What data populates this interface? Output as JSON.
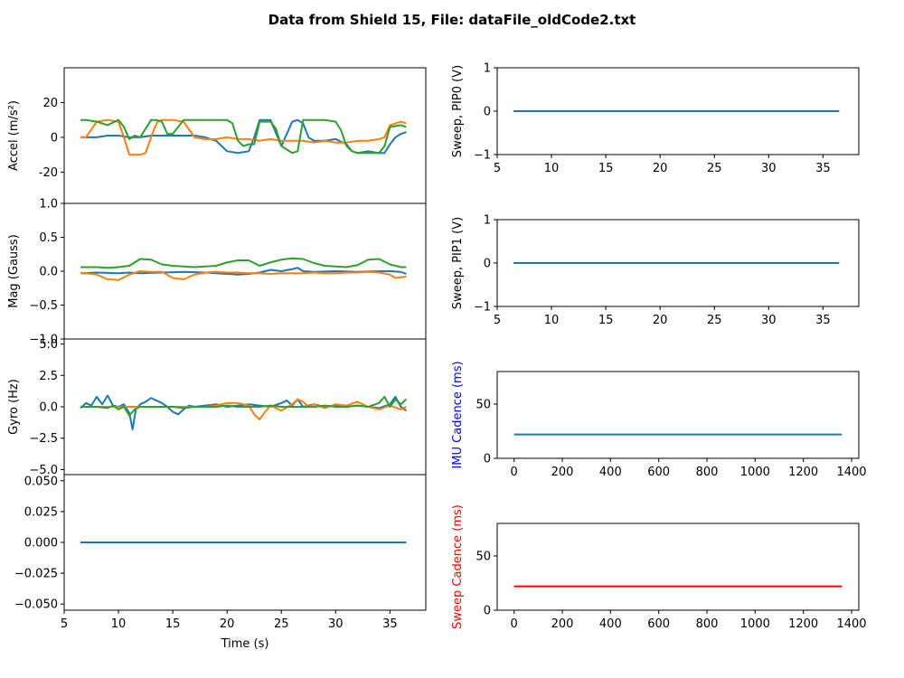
{
  "figure": {
    "title": "Data from Shield 15, File: dataFile_oldCode2.txt"
  },
  "colors": {
    "c0": "#1f77b4",
    "c1": "#ff7f0e",
    "c2": "#2ca02c",
    "red": "#ff0000",
    "blue": "#0000ff"
  },
  "chart_data": [
    {
      "id": "accel",
      "type": "line",
      "ylabel": "Accel (m/s²)",
      "ylim": [
        -38,
        40
      ],
      "yticks": [
        -20,
        0,
        20
      ],
      "xlim": [
        5,
        38.3
      ],
      "x_ticklabels_visible": false,
      "series": [
        {
          "color": "c0",
          "x": [
            6.5,
            8,
            9,
            10,
            11,
            12,
            13,
            15,
            17,
            18,
            19,
            20,
            21,
            22,
            22.5,
            23,
            24,
            25,
            26,
            26.5,
            27,
            27.5,
            28,
            29,
            30,
            31,
            31.5,
            32,
            33,
            34,
            34.5,
            35,
            35.5,
            36,
            36.5
          ],
          "y": [
            0,
            0,
            1,
            1,
            0,
            0,
            1,
            1,
            1,
            0,
            -2,
            -8,
            -9,
            -8,
            0,
            10,
            10,
            -5,
            9,
            10,
            8,
            0,
            -2,
            -2,
            -1,
            -4,
            -8,
            -9,
            -8,
            -9,
            -9,
            -4,
            0,
            2,
            3
          ]
        },
        {
          "color": "c1",
          "x": [
            6.5,
            7,
            8,
            9,
            10,
            10.5,
            11,
            11.5,
            12,
            12.5,
            13,
            13.3,
            13.6,
            14,
            15,
            16,
            17,
            18,
            19,
            20,
            21,
            22,
            23,
            24,
            25,
            26,
            27,
            28,
            29,
            30,
            31,
            32,
            33,
            34,
            34.5,
            35,
            35.5,
            36,
            36.5
          ],
          "y": [
            0,
            0,
            9,
            10,
            9,
            0,
            -10,
            -10,
            -10,
            -9,
            0,
            5,
            9,
            10,
            10,
            9,
            0,
            -1,
            -1,
            0,
            -1,
            -1,
            -2,
            -1,
            -2,
            -2,
            -2,
            -3,
            -2,
            -3,
            -3,
            -2,
            -2,
            -1,
            0,
            7,
            8,
            9,
            8
          ]
        },
        {
          "color": "c2",
          "x": [
            6.5,
            7,
            8,
            9,
            10,
            10.5,
            11,
            11.5,
            12,
            13,
            13.5,
            14,
            14.5,
            15,
            16,
            17,
            18,
            19,
            20,
            20.5,
            21,
            21.5,
            22,
            22.5,
            23,
            24,
            24.5,
            25,
            25.5,
            26,
            26.5,
            27,
            28,
            29,
            30,
            30.5,
            31,
            31.5,
            32,
            33,
            34,
            34.5,
            35,
            36,
            36.5
          ],
          "y": [
            10,
            10,
            9,
            7,
            10,
            6,
            -1,
            1,
            0,
            10,
            10,
            9,
            2,
            2,
            10,
            10,
            10,
            10,
            10,
            8,
            -2,
            -5,
            -4,
            -4,
            9,
            9,
            5,
            -5,
            -7,
            -9,
            -8,
            10,
            10,
            10,
            9,
            4,
            -5,
            -8,
            -9,
            -9,
            -9,
            -5,
            6,
            7,
            6
          ]
        }
      ]
    },
    {
      "id": "mag",
      "type": "line",
      "ylabel": "Mag (Gauss)",
      "ylim": [
        -1.0,
        1.0
      ],
      "yticks": [
        -1.0,
        -0.5,
        0.0,
        0.5,
        1.0
      ],
      "ytick_labels": [
        "−1.0",
        "−0.5",
        "0.0",
        "0.5",
        "1.0"
      ],
      "xlim": [
        5,
        38.3
      ],
      "x_ticklabels_visible": false,
      "series": [
        {
          "color": "c0",
          "x": [
            6.5,
            8,
            10,
            11,
            12,
            14,
            16,
            18,
            20,
            21,
            22,
            23,
            24,
            25,
            26,
            26.5,
            27,
            28,
            30,
            32,
            34,
            35,
            36,
            36.5
          ],
          "y": [
            -0.03,
            -0.02,
            -0.03,
            -0.02,
            -0.03,
            -0.02,
            -0.01,
            -0.02,
            -0.04,
            -0.05,
            -0.04,
            -0.02,
            0.02,
            0.0,
            0.03,
            0.05,
            0.0,
            -0.01,
            0.0,
            -0.01,
            0.0,
            0.0,
            -0.01,
            -0.04
          ]
        },
        {
          "color": "c1",
          "x": [
            6.5,
            7,
            8,
            9,
            10,
            11,
            12,
            13,
            14,
            15,
            16,
            17,
            18,
            19,
            20,
            21,
            22,
            23,
            24,
            25,
            26,
            27,
            28,
            29,
            30,
            31,
            32,
            33,
            34,
            35,
            35.5,
            36,
            36.5
          ],
          "y": [
            -0.03,
            -0.03,
            -0.05,
            -0.12,
            -0.13,
            -0.05,
            0.0,
            -0.01,
            -0.01,
            -0.1,
            -0.12,
            -0.05,
            -0.02,
            -0.01,
            -0.02,
            -0.02,
            -0.03,
            -0.03,
            -0.04,
            -0.03,
            -0.03,
            -0.03,
            -0.02,
            -0.03,
            -0.03,
            -0.02,
            -0.02,
            -0.01,
            -0.02,
            -0.05,
            -0.1,
            -0.09,
            -0.08
          ]
        },
        {
          "color": "c2",
          "x": [
            6.5,
            8,
            9,
            10,
            11,
            12,
            13,
            14,
            15,
            16,
            17,
            18,
            19,
            20,
            21,
            22,
            23,
            24,
            25,
            26,
            27,
            28,
            29,
            30,
            31,
            32,
            33,
            34,
            35,
            36,
            36.5
          ],
          "y": [
            0.06,
            0.06,
            0.05,
            0.06,
            0.08,
            0.18,
            0.17,
            0.1,
            0.08,
            0.07,
            0.06,
            0.07,
            0.08,
            0.13,
            0.16,
            0.16,
            0.08,
            0.13,
            0.17,
            0.19,
            0.18,
            0.12,
            0.08,
            0.07,
            0.06,
            0.09,
            0.17,
            0.18,
            0.1,
            0.06,
            0.06
          ]
        }
      ]
    },
    {
      "id": "gyro",
      "type": "line",
      "ylabel": "Gyro (Hz)",
      "ylim": [
        -5.4,
        5.4
      ],
      "yticks": [
        -5.0,
        -2.5,
        0.0,
        2.5,
        5.0
      ],
      "ytick_labels": [
        "−5.0",
        "−2.5",
        "0.0",
        "2.5",
        "5.0"
      ],
      "xlim": [
        5,
        38.3
      ],
      "x_ticklabels_visible": false,
      "series": [
        {
          "color": "c0",
          "x": [
            6.5,
            7,
            7.5,
            8,
            8.5,
            9,
            9.5,
            10,
            10.5,
            11,
            11.3,
            11.6,
            12,
            12.5,
            13,
            13.5,
            14,
            14.5,
            15,
            15.5,
            16,
            16.5,
            17,
            18,
            19,
            20,
            21,
            22,
            23,
            24,
            25,
            25.5,
            26,
            26.5,
            27,
            28,
            29,
            30,
            31,
            32,
            33,
            34,
            35,
            35.5,
            36,
            36.5
          ],
          "y": [
            -0.1,
            0.3,
            0.1,
            0.8,
            0.2,
            0.9,
            0.1,
            0.0,
            0.2,
            -0.5,
            -1.8,
            -0.2,
            0.2,
            0.4,
            0.7,
            0.5,
            0.3,
            0.0,
            -0.4,
            -0.6,
            -0.2,
            0.1,
            0.0,
            0.1,
            0.2,
            0.0,
            0.1,
            0.2,
            0.1,
            0.0,
            0.3,
            0.5,
            0.1,
            0.6,
            0.0,
            0.2,
            0.0,
            0.1,
            0.0,
            0.1,
            0.0,
            -0.1,
            0.2,
            0.8,
            0.0,
            -0.3
          ]
        },
        {
          "color": "c1",
          "x": [
            6.5,
            8,
            10,
            12,
            14,
            16,
            18,
            19,
            20,
            21,
            22,
            22.5,
            23,
            23.5,
            24,
            25,
            26,
            26.5,
            27,
            27.5,
            28,
            29,
            30,
            31,
            32,
            33,
            34,
            35,
            36,
            36.5
          ],
          "y": [
            0.0,
            0.0,
            0.0,
            0.0,
            0.0,
            0.0,
            0.0,
            0.1,
            0.3,
            0.3,
            0.1,
            -0.6,
            -1.0,
            -0.4,
            0.1,
            -0.3,
            0.2,
            0.6,
            0.4,
            0.0,
            0.2,
            -0.1,
            0.2,
            0.1,
            0.4,
            0.0,
            -0.2,
            0.1,
            -0.2,
            0.0
          ]
        },
        {
          "color": "c2",
          "x": [
            6.5,
            8,
            9,
            9.5,
            10,
            10.5,
            11,
            11.5,
            12,
            13,
            14,
            15,
            16,
            17,
            18,
            19,
            20,
            21,
            22,
            23,
            24,
            25,
            26,
            27,
            28,
            29,
            30,
            31,
            32,
            33,
            34,
            34.5,
            35,
            35.5,
            36,
            36.5
          ],
          "y": [
            0.0,
            0.0,
            -0.1,
            0.1,
            -0.2,
            0.0,
            -0.7,
            -0.2,
            0.0,
            0.0,
            0.0,
            0.0,
            -0.1,
            0.0,
            0.0,
            0.0,
            0.1,
            0.0,
            0.0,
            0.0,
            0.1,
            0.0,
            0.0,
            0.0,
            0.0,
            0.1,
            0.0,
            0.0,
            0.1,
            0.0,
            0.3,
            0.8,
            0.0,
            0.6,
            0.2,
            0.6
          ]
        }
      ]
    },
    {
      "id": "bottom-left",
      "type": "line",
      "ylabel": "",
      "xlabel": "Time (s)",
      "ylim": [
        -0.055,
        0.055
      ],
      "yticks": [
        -0.05,
        -0.025,
        0.0,
        0.025,
        0.05
      ],
      "ytick_labels": [
        "−0.050",
        "−0.025",
        "0.000",
        "0.025",
        "0.050"
      ],
      "xlim": [
        5,
        38.3
      ],
      "xticks": [
        5,
        10,
        15,
        20,
        25,
        30,
        35
      ],
      "series": [
        {
          "color": "c0",
          "x": [
            6.5,
            36.5
          ],
          "y": [
            0,
            0
          ]
        }
      ]
    },
    {
      "id": "pip0",
      "type": "line",
      "ylabel": "Sweep, PIP0 (V)",
      "ylim": [
        -1,
        1
      ],
      "yticks": [
        -1,
        0,
        1
      ],
      "ytick_labels": [
        "−1",
        "0",
        "1"
      ],
      "xlim": [
        5,
        38.3
      ],
      "xticks": [
        5,
        10,
        15,
        20,
        25,
        30,
        35
      ],
      "series": [
        {
          "color": "c0",
          "x": [
            6.5,
            36.5
          ],
          "y": [
            0,
            0
          ]
        }
      ]
    },
    {
      "id": "pip1",
      "type": "line",
      "ylabel": "Sweep, PIP1 (V)",
      "ylim": [
        -1,
        1
      ],
      "yticks": [
        -1,
        0,
        1
      ],
      "ytick_labels": [
        "−1",
        "0",
        "1"
      ],
      "xlim": [
        5,
        38.3
      ],
      "xticks": [
        5,
        10,
        15,
        20,
        25,
        30,
        35
      ],
      "series": [
        {
          "color": "c0",
          "x": [
            6.5,
            36.5
          ],
          "y": [
            0,
            0
          ]
        }
      ]
    },
    {
      "id": "imu-cadence",
      "type": "line",
      "ylabel": "IMU Cadence (ms)",
      "ylabel_color": "blue",
      "ylim": [
        0,
        80
      ],
      "yticks": [
        0,
        50
      ],
      "xlim": [
        -70,
        1430
      ],
      "xticks": [
        0,
        200,
        400,
        600,
        800,
        1000,
        1200,
        1400
      ],
      "series": [
        {
          "color": "c0",
          "x": [
            0,
            1360
          ],
          "y": [
            22,
            22
          ]
        }
      ]
    },
    {
      "id": "sweep-cadence",
      "type": "line",
      "ylabel": "Sweep Cadence (ms)",
      "ylabel_color": "red",
      "ylim": [
        0,
        80
      ],
      "yticks": [
        0,
        50
      ],
      "xlim": [
        -70,
        1430
      ],
      "xticks": [
        0,
        200,
        400,
        600,
        800,
        1000,
        1200,
        1400
      ],
      "series": [
        {
          "color": "red",
          "x": [
            0,
            1360
          ],
          "y": [
            22,
            22
          ]
        }
      ]
    }
  ]
}
